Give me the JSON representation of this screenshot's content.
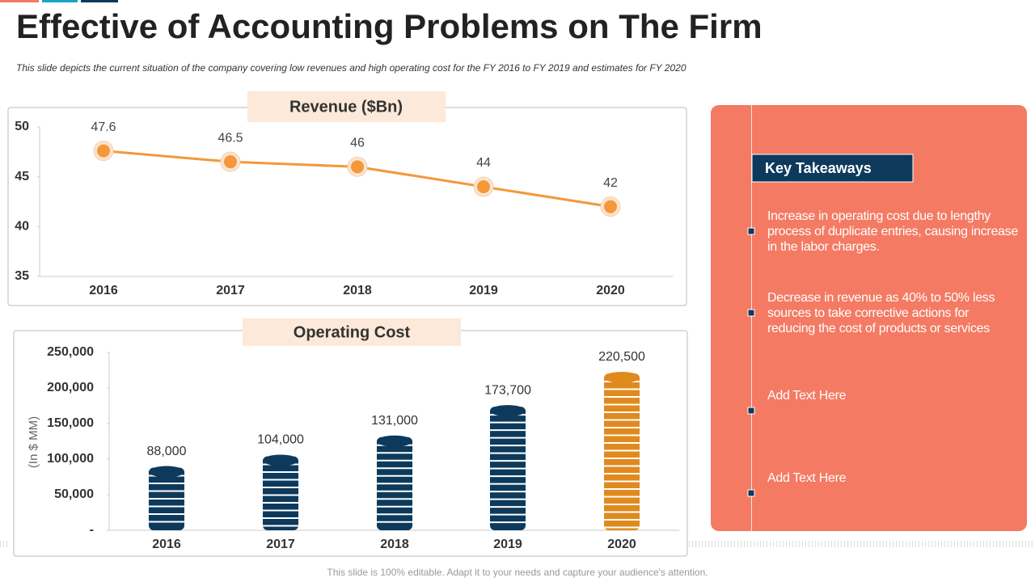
{
  "title": "Effective of Accounting Problems on The Firm",
  "subtitle": "This slide depicts the current situation of the company covering low revenues and high operating cost for the FY 2016 to FY 2019 and estimates for FY 2020",
  "chart_data": [
    {
      "type": "line",
      "title": "Revenue ($Bn)",
      "categories": [
        "2016",
        "2017",
        "2018",
        "2019",
        "2020"
      ],
      "values": [
        47.6,
        46.5,
        46,
        44,
        42
      ],
      "color": "#f4983a",
      "ylim": [
        35,
        50
      ],
      "yticks": [
        35,
        40,
        45,
        50
      ]
    },
    {
      "type": "bar",
      "title": "Operating Cost",
      "y_label": "(In $ MM)",
      "categories": [
        "2016",
        "2017",
        "2018",
        "2019",
        "2020"
      ],
      "values": [
        88000,
        104000,
        131000,
        173700,
        220500
      ],
      "value_labels": [
        "88,000",
        "104,000",
        "131,000",
        "173,700",
        "220,500"
      ],
      "colors": [
        "#0d3a5c",
        "#0d3a5c",
        "#0d3a5c",
        "#0d3a5c",
        "#e08a1e"
      ],
      "ylim": [
        0,
        250000
      ],
      "yticks": [
        {
          "value": 0,
          "label": "-"
        },
        {
          "value": 50000,
          "label": "50,000"
        },
        {
          "value": 100000,
          "label": "100,000"
        },
        {
          "value": 150000,
          "label": "150,000"
        },
        {
          "value": 200000,
          "label": "200,000"
        },
        {
          "value": 250000,
          "label": "250,000"
        }
      ]
    }
  ],
  "takeaways": {
    "heading": "Key Takeaways",
    "items": [
      "Increase  in operating cost due to lengthy process of duplicate entries, causing increase in the labor charges.",
      "Decrease in revenue  as 40%  to 50%  less sources to take corrective actions for reducing the  cost of products or services",
      "Add Text Here",
      "Add Text Here"
    ]
  },
  "footer": "This slide is 100% editable. Adapt it to your needs and capture your audience's attention."
}
